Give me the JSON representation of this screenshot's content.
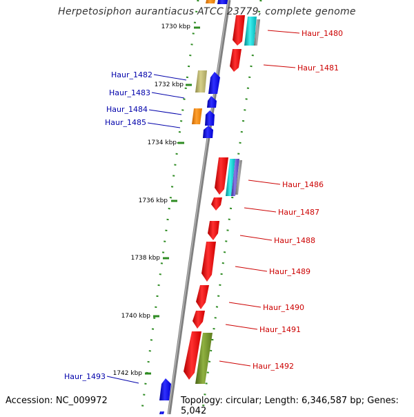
{
  "title": "Herpetosiphon aurantiacus ATCC 23779, complete genome",
  "footer": {
    "accession": "Accession: NC_009972",
    "topology": "Topology: circular; Length: 6,346,587 bp; Genes: 5,042"
  },
  "colors": {
    "backbone": "#808080",
    "ruler": "#2e8b22",
    "forward_label": "#cc0000",
    "reverse_label": "#0000aa",
    "forward_gene": "#ff0000",
    "reverse_gene": "#0000ff",
    "orange_gene": "#ff8c00",
    "khaki_gene": "#bdb76b",
    "cyan_gene": "#00ced1",
    "olive_gene": "#6b8e23",
    "slate_gene": "#6a5acd"
  },
  "scale": [
    {
      "label": "1730 kbp"
    },
    {
      "label": "1732 kbp"
    },
    {
      "label": "1734 kbp"
    },
    {
      "label": "1736 kbp"
    },
    {
      "label": "1738 kbp"
    },
    {
      "label": "1740 kbp"
    },
    {
      "label": "1742 kbp"
    }
  ],
  "genes_forward": [
    {
      "label": "Haur_1480"
    },
    {
      "label": "Haur_1481"
    },
    {
      "label": "Haur_1486"
    },
    {
      "label": "Haur_1487"
    },
    {
      "label": "Haur_1488"
    },
    {
      "label": "Haur_1489"
    },
    {
      "label": "Haur_1490"
    },
    {
      "label": "Haur_1491"
    },
    {
      "label": "Haur_1492"
    }
  ],
  "genes_reverse": [
    {
      "label": "Haur_1482"
    },
    {
      "label": "Haur_1483"
    },
    {
      "label": "Haur_1484"
    },
    {
      "label": "Haur_1485"
    },
    {
      "label": "Haur_1493"
    }
  ]
}
